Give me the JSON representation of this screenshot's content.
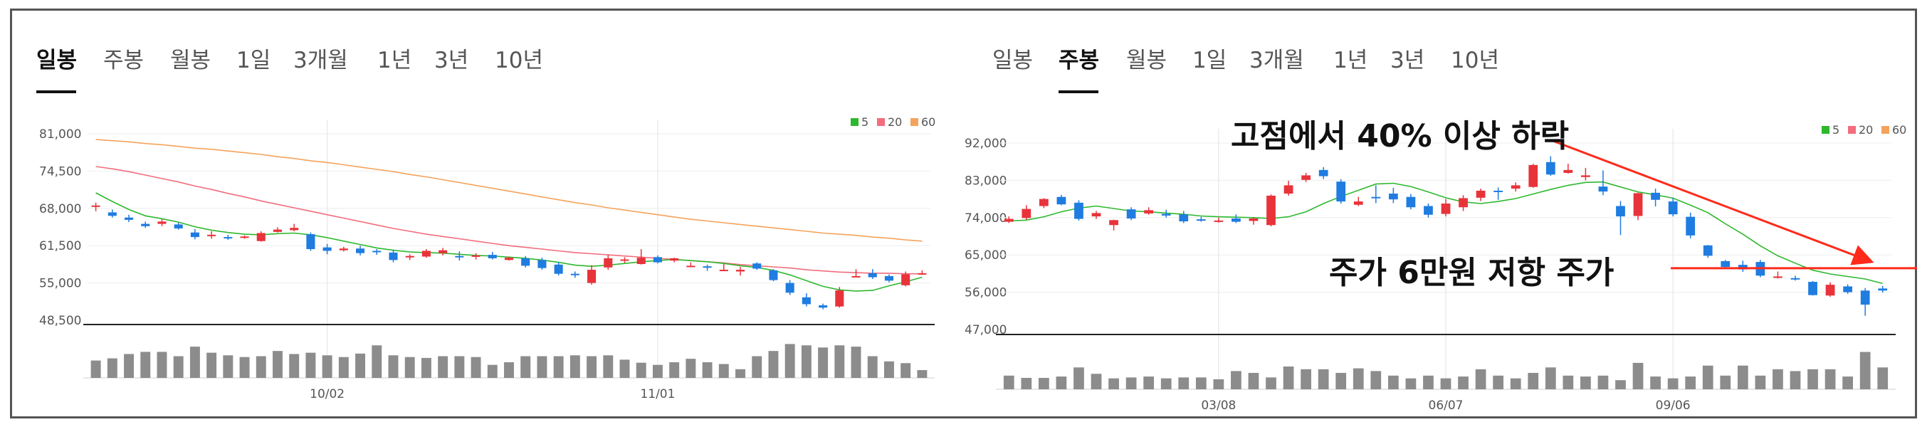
{
  "left_panel": {
    "tabs": [
      "일봉",
      "주봉",
      "월봉",
      "1일",
      "3개월",
      "1년",
      "3년",
      "10년"
    ],
    "active_tab": 0
  },
  "right_panel": {
    "tabs": [
      "일봉",
      "주봉",
      "월봉",
      "1일",
      "3개월",
      "1년",
      "3년",
      "10년"
    ],
    "active_tab": 1
  },
  "annotations": {
    "drop_text": "고점에서 40% 이상 하락",
    "resistance_text": "주가 6만원 저항 주가",
    "arrow_color": "#ff2a1a"
  },
  "colors": {
    "up": "#e8333a",
    "down": "#1f7ce0",
    "ma5": "#2eb82e",
    "ma20": "#f26d7d",
    "ma60": "#f5a35c",
    "volume": "#8c8c8c"
  },
  "chart_data": [
    {
      "type": "candlestick",
      "period": "daily",
      "legend": [
        "5",
        "20",
        "60"
      ],
      "legend_position": "top-right",
      "ylim": [
        48500,
        81000
      ],
      "yticks": [
        "81,000",
        "74,500",
        "68,000",
        "61,500",
        "55,000",
        "48,500"
      ],
      "xticks": [
        {
          "label": "10/02",
          "index": 14
        },
        {
          "label": "11/01",
          "index": 34
        }
      ],
      "ohlc": [
        [
          68500,
          69000,
          67500,
          68500
        ],
        [
          67300,
          67800,
          66400,
          66700
        ],
        [
          66400,
          66900,
          65600,
          66000
        ],
        [
          65300,
          65700,
          64600,
          64900
        ],
        [
          65300,
          66100,
          64900,
          65700
        ],
        [
          65200,
          65500,
          64300,
          64500
        ],
        [
          63800,
          64400,
          62600,
          63000
        ],
        [
          63200,
          64000,
          62700,
          63400
        ],
        [
          63000,
          63400,
          62500,
          62800
        ],
        [
          62900,
          63300,
          62700,
          63100
        ],
        [
          62300,
          64000,
          62200,
          63700
        ],
        [
          63900,
          64700,
          63800,
          64300
        ],
        [
          64200,
          65300,
          64000,
          64600
        ],
        [
          63500,
          63800,
          60600,
          60900
        ],
        [
          61200,
          61800,
          60000,
          60600
        ],
        [
          60700,
          61300,
          60500,
          61000
        ],
        [
          61000,
          61500,
          59800,
          60200
        ],
        [
          60600,
          60900,
          59900,
          60400
        ],
        [
          60300,
          60800,
          58600,
          59000
        ],
        [
          59500,
          60000,
          59000,
          59700
        ],
        [
          59600,
          60900,
          59400,
          60600
        ],
        [
          60200,
          61100,
          59800,
          60700
        ],
        [
          59700,
          60500,
          58900,
          59500
        ],
        [
          59700,
          60200,
          59100,
          59800
        ],
        [
          59900,
          60400,
          59100,
          59300
        ],
        [
          59000,
          59600,
          58900,
          59400
        ],
        [
          59300,
          59700,
          57700,
          58000
        ],
        [
          59000,
          59400,
          57300,
          57600
        ],
        [
          58200,
          58600,
          56300,
          56600
        ],
        [
          56600,
          57000,
          55900,
          56400
        ],
        [
          55000,
          58100,
          54700,
          57300
        ],
        [
          57700,
          59900,
          57300,
          59300
        ],
        [
          59000,
          59500,
          58500,
          59100
        ],
        [
          58300,
          60900,
          58200,
          59400
        ],
        [
          59500,
          59800,
          58400,
          58600
        ],
        [
          58900,
          59400,
          58600,
          59300
        ],
        [
          58000,
          58600,
          57800,
          58000
        ],
        [
          57900,
          58200,
          57100,
          57800
        ],
        [
          57200,
          58300,
          57100,
          57300
        ],
        [
          57000,
          57800,
          56300,
          57300
        ],
        [
          58400,
          58600,
          57300,
          57500
        ],
        [
          57200,
          57400,
          55300,
          55500
        ],
        [
          55000,
          55500,
          52900,
          53300
        ],
        [
          52500,
          53200,
          50900,
          51300
        ],
        [
          51100,
          51400,
          50400,
          50700
        ],
        [
          50900,
          54300,
          50700,
          53700
        ],
        [
          56200,
          57400,
          56000,
          56200
        ],
        [
          56700,
          57400,
          55700,
          56000
        ],
        [
          56200,
          56500,
          55100,
          55400
        ],
        [
          54600,
          57000,
          54400,
          56500
        ],
        [
          56700,
          57200,
          56400,
          56700
        ]
      ],
      "volume": [
        40,
        45,
        55,
        60,
        60,
        50,
        72,
        58,
        52,
        48,
        50,
        62,
        55,
        58,
        52,
        48,
        56,
        75,
        52,
        48,
        46,
        50,
        50,
        48,
        30,
        36,
        50,
        50,
        50,
        52,
        50,
        52,
        42,
        35,
        30,
        36,
        44,
        36,
        32,
        20,
        50,
        62,
        78,
        75,
        70,
        75,
        72,
        50,
        38,
        34,
        18
      ],
      "ma": {
        "5": [
          70700,
          69200,
          67800,
          66700,
          66200,
          65600,
          64800,
          64200,
          63800,
          63500,
          63400,
          63600,
          63700,
          63400,
          62900,
          62300,
          61700,
          61100,
          60700,
          60400,
          60300,
          60200,
          60000,
          59800,
          59700,
          59500,
          59300,
          59000,
          58600,
          58100,
          57900,
          58100,
          58400,
          58700,
          58900,
          59100,
          58900,
          58700,
          58400,
          58000,
          57700,
          57200,
          56400,
          55400,
          54400,
          53800,
          53600,
          53700,
          54500,
          55200,
          56000
        ],
        "20": [
          75300,
          74900,
          74400,
          73800,
          73200,
          72600,
          71900,
          71300,
          70600,
          70000,
          69300,
          68700,
          68100,
          67500,
          66900,
          66300,
          65700,
          65100,
          64500,
          64000,
          63500,
          63100,
          62700,
          62300,
          61900,
          61500,
          61200,
          60900,
          60600,
          60300,
          60100,
          59900,
          59700,
          59500,
          59300,
          59100,
          58900,
          58700,
          58500,
          58200,
          58000,
          57800,
          57600,
          57300,
          57100,
          56900,
          56800,
          56700,
          56700,
          56600,
          56600
        ],
        "60": [
          80000,
          79800,
          79600,
          79300,
          79100,
          78800,
          78500,
          78300,
          78000,
          77700,
          77400,
          77000,
          76700,
          76300,
          76000,
          75600,
          75200,
          74800,
          74400,
          73900,
          73500,
          73000,
          72500,
          72000,
          71500,
          71000,
          70500,
          70000,
          69500,
          69000,
          68600,
          68100,
          67700,
          67300,
          66900,
          66500,
          66100,
          65800,
          65500,
          65200,
          64900,
          64600,
          64300,
          64000,
          63700,
          63500,
          63300,
          63000,
          62800,
          62500,
          62300
        ]
      }
    },
    {
      "type": "candlestick",
      "period": "weekly",
      "legend": [
        "5",
        "20",
        "60"
      ],
      "legend_position": "top-right",
      "ylim": [
        47000,
        92000
      ],
      "yticks": [
        "92,000",
        "83,000",
        "74,000",
        "65,000",
        "56,000",
        "47,000"
      ],
      "xticks": [
        {
          "label": "03/08",
          "index": 12
        },
        {
          "label": "06/07",
          "index": 25
        },
        {
          "label": "09/06",
          "index": 38
        }
      ],
      "ohlc": [
        [
          73000,
          74300,
          72700,
          73700
        ],
        [
          73900,
          77000,
          73500,
          76100
        ],
        [
          76800,
          78700,
          76300,
          78500
        ],
        [
          79000,
          79500,
          77000,
          77200
        ],
        [
          77600,
          78200,
          73300,
          73700
        ],
        [
          74300,
          75600,
          73700,
          75100
        ],
        [
          72200,
          73500,
          70900,
          73400
        ],
        [
          76000,
          76500,
          73400,
          73800
        ],
        [
          75000,
          76500,
          74700,
          75800
        ],
        [
          74900,
          75900,
          74000,
          74500
        ],
        [
          74800,
          75600,
          72700,
          73100
        ],
        [
          73600,
          74200,
          73000,
          73400
        ],
        [
          73000,
          74000,
          72800,
          73300
        ],
        [
          73800,
          74800,
          72700,
          73000
        ],
        [
          73200,
          74100,
          72300,
          73800
        ],
        [
          72200,
          79600,
          71900,
          79300
        ],
        [
          79800,
          82900,
          79300,
          81800
        ],
        [
          83100,
          84800,
          82600,
          84200
        ],
        [
          85500,
          86200,
          83300,
          84000
        ],
        [
          82700,
          83300,
          77400,
          77900
        ],
        [
          77100,
          79000,
          76800,
          77900
        ],
        [
          79000,
          81800,
          77500,
          78800
        ],
        [
          79800,
          81200,
          77500,
          78400
        ],
        [
          79000,
          79700,
          76000,
          76500
        ],
        [
          76800,
          77400,
          74000,
          74700
        ],
        [
          74900,
          78500,
          74300,
          77400
        ],
        [
          76500,
          79400,
          75600,
          78700
        ],
        [
          78800,
          81000,
          78000,
          80500
        ],
        [
          80500,
          81300,
          78300,
          80400
        ],
        [
          81000,
          82500,
          80300,
          81800
        ],
        [
          81400,
          87000,
          81200,
          86700
        ],
        [
          87400,
          88800,
          84100,
          84400
        ],
        [
          84800,
          87000,
          84600,
          85500
        ],
        [
          83800,
          86000,
          83000,
          84200
        ],
        [
          81500,
          85400,
          79400,
          80300
        ],
        [
          76800,
          78000,
          69800,
          74300
        ],
        [
          74400,
          80000,
          73400,
          79900
        ],
        [
          80000,
          81000,
          76700,
          78300
        ],
        [
          77900,
          78800,
          74300,
          74800
        ],
        [
          74200,
          75200,
          69000,
          69700
        ],
        [
          67300,
          67400,
          64300,
          64800
        ],
        [
          63500,
          63800,
          61800,
          62100
        ],
        [
          62600,
          63600,
          60900,
          61500
        ],
        [
          63300,
          63800,
          59600,
          60000
        ],
        [
          59800,
          61000,
          59300,
          59800
        ],
        [
          59400,
          60000,
          58800,
          59100
        ],
        [
          58500,
          58700,
          55200,
          55300
        ],
        [
          55200,
          58400,
          54900,
          57800
        ],
        [
          57400,
          57900,
          55600,
          56000
        ],
        [
          56400,
          57000,
          50300,
          53000
        ],
        [
          56900,
          57500,
          55900,
          56400
        ]
      ],
      "volume": [
        30,
        25,
        25,
        28,
        48,
        34,
        24,
        26,
        28,
        24,
        26,
        26,
        22,
        40,
        36,
        26,
        50,
        44,
        44,
        36,
        46,
        40,
        30,
        24,
        30,
        24,
        28,
        44,
        30,
        24,
        36,
        48,
        30,
        28,
        30,
        20,
        58,
        28,
        24,
        28,
        52,
        30,
        52,
        30,
        44,
        40,
        44,
        44,
        28,
        82,
        48
      ],
      "ma": {
        "5": [
          73200,
          73400,
          74200,
          75400,
          76300,
          76800,
          76200,
          75600,
          75400,
          75100,
          74800,
          74400,
          74200,
          74100,
          74000,
          73800,
          74200,
          75400,
          77400,
          79100,
          80600,
          82100,
          82300,
          81500,
          80200,
          78800,
          77800,
          77400,
          77900,
          78600,
          79700,
          80800,
          81800,
          82500,
          82600,
          81400,
          80200,
          79500,
          78700,
          77000,
          75200,
          72500,
          70000,
          67200,
          64800,
          63000,
          61300,
          60400,
          59800,
          59200,
          58100
        ]
      }
    }
  ]
}
